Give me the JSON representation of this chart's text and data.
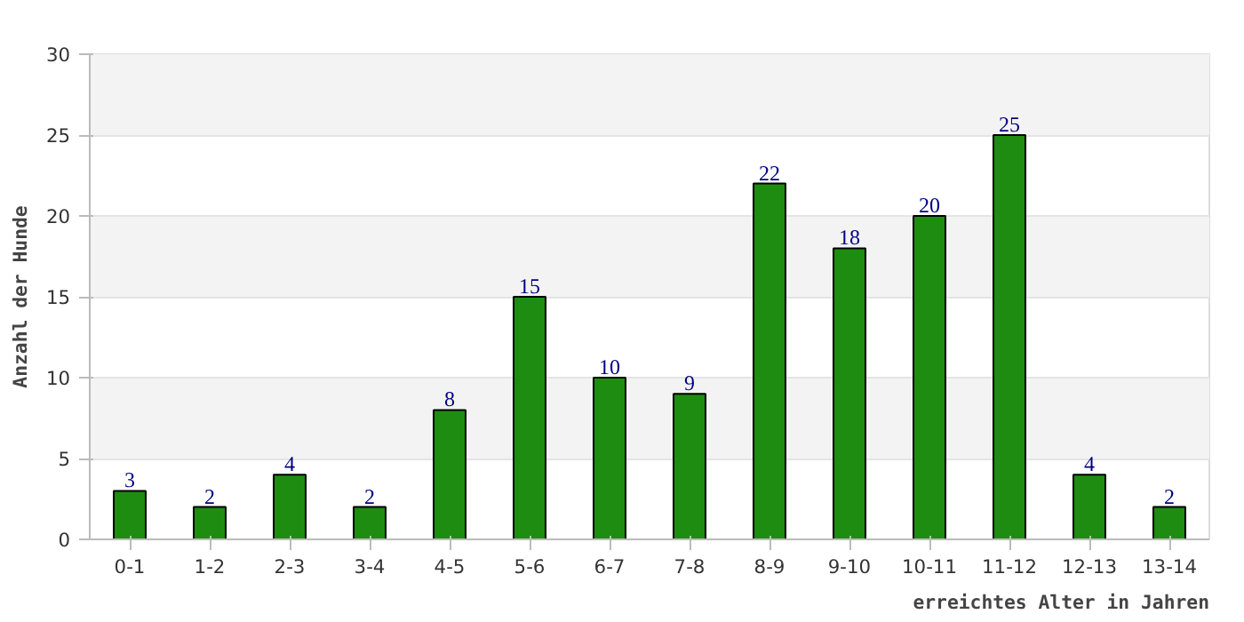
{
  "chart_data": {
    "type": "bar",
    "categories": [
      "0-1",
      "1-2",
      "2-3",
      "3-4",
      "4-5",
      "5-6",
      "6-7",
      "7-8",
      "8-9",
      "9-10",
      "10-11",
      "11-12",
      "12-13",
      "13-14"
    ],
    "values": [
      3,
      2,
      4,
      2,
      8,
      15,
      10,
      9,
      22,
      18,
      20,
      25,
      4,
      2
    ],
    "color": "#1e8c10",
    "xlabel": "erreichtes Alter in Jahren",
    "ylabel": "Anzahl der Hunde",
    "ylim": [
      0,
      30
    ],
    "yticks": [
      0,
      5,
      10,
      15,
      20,
      25,
      30
    ],
    "grid": "y",
    "data_labels": true
  }
}
